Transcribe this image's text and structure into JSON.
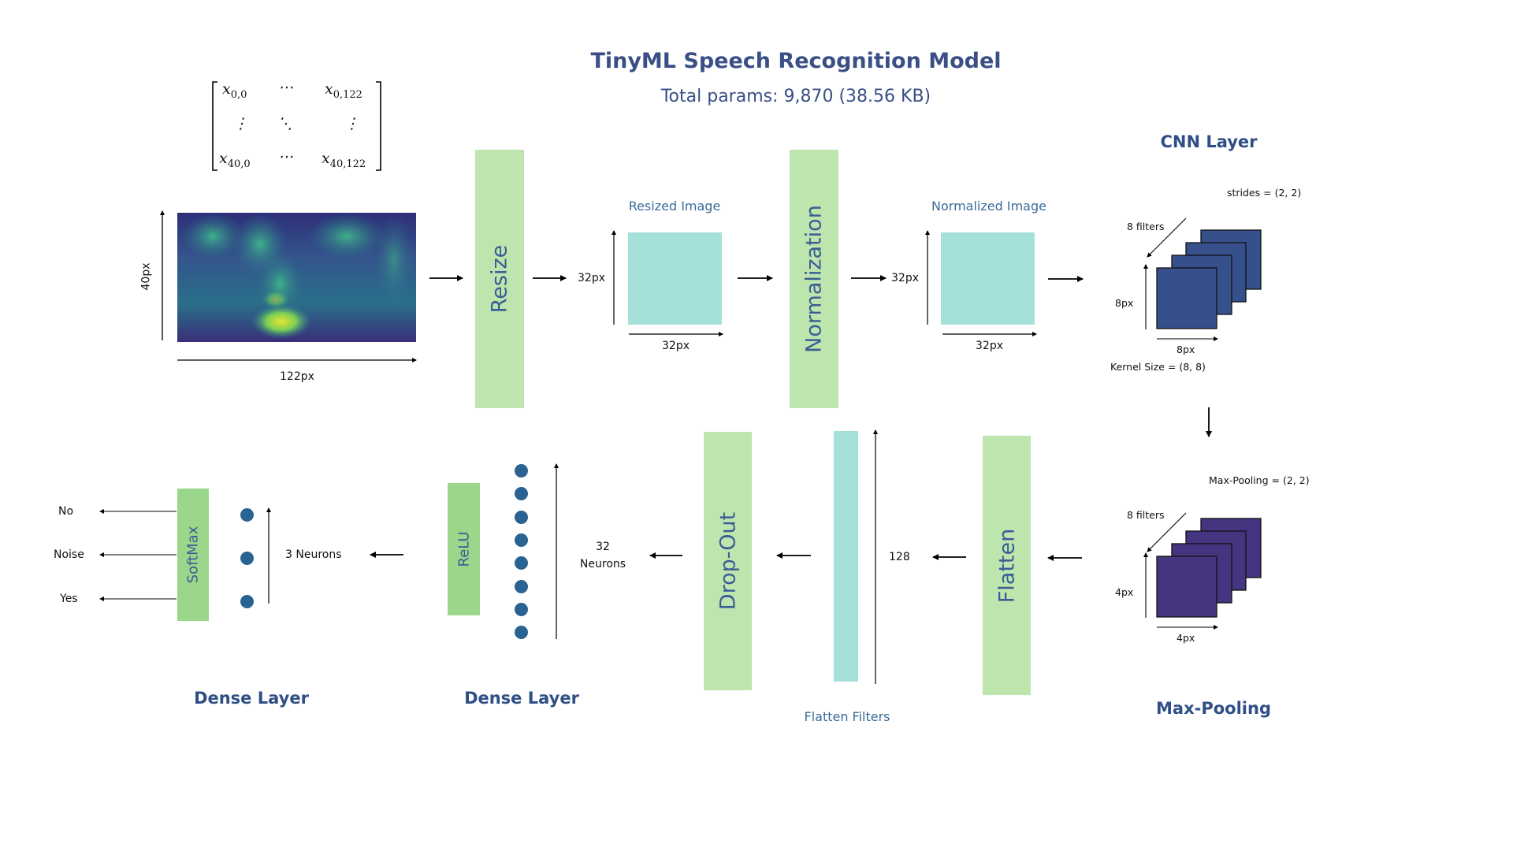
{
  "header": {
    "title": "TinyML Speech Recognition Model",
    "subtitle": "Total params: 9,870 (38.56 KB)"
  },
  "input": {
    "matrix": {
      "top_left": "x0,0",
      "top_right": "x0,122",
      "bottom_left": "x40,0",
      "bottom_right": "x40,122",
      "h_dots": "⋯",
      "v_dots": "⋮",
      "d_dots": "⋱"
    },
    "height_label": "40px",
    "width_label": "122px"
  },
  "resize": {
    "label": "Resize"
  },
  "resized_image": {
    "caption": "Resized Image",
    "height_label": "32px",
    "width_label": "32px"
  },
  "normalization": {
    "label": "Normalization"
  },
  "normalized_image": {
    "caption": "Normalized Image",
    "height_label": "32px",
    "width_label": "32px"
  },
  "cnn_layer": {
    "title": "CNN Layer",
    "strides": "strides = (2, 2)",
    "filters": "8 filters",
    "height_label": "8px",
    "width_label": "8px",
    "kernel": "Kernel Size = (8, 8)"
  },
  "max_pooling": {
    "title": "Max-Pooling",
    "pool": "Max-Pooling = (2, 2)",
    "filters": "8 filters",
    "height_label": "4px",
    "width_label": "4px"
  },
  "flatten": {
    "label": "Flatten"
  },
  "flatten_filters": {
    "caption": "Flatten Filters",
    "size_label": "128"
  },
  "dropout": {
    "label": "Drop-Out"
  },
  "dense_relu": {
    "title": "Dense Layer",
    "activation": "ReLU",
    "neurons_line1": "32",
    "neurons_line2": "Neurons"
  },
  "dense_softmax": {
    "title": "Dense Layer",
    "activation": "SoftMax",
    "neurons": "3 Neurons",
    "outputs": [
      "No",
      "Noise",
      "Yes"
    ]
  },
  "colors": {
    "box_green": "#bde5ad",
    "activation_green": "#9ad78a",
    "teal": "#a6e0da",
    "cnn_filter": "#35508a",
    "pool_filter": "#453580",
    "neuron": "#2a6391",
    "title_text": "#3a4f86"
  }
}
